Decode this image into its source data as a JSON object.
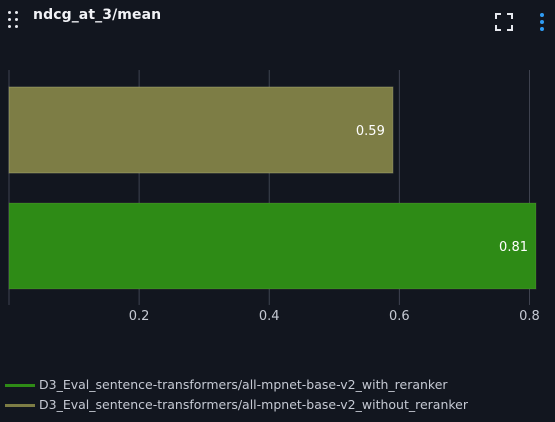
{
  "panel": {
    "title": "ndcg_at_3/mean",
    "icons": {
      "drag": "drag-handle-icon",
      "fullscreen": "fullscreen-icon",
      "menu": "more-vertical-icon"
    },
    "colors": {
      "background": "#12161f",
      "grid": "#3e4350",
      "text": "#c5c9d3",
      "menu_accent": "#2f9cf4"
    }
  },
  "chart_data": {
    "type": "bar",
    "orientation": "horizontal",
    "title": "ndcg_at_3/mean",
    "xlabel": "",
    "ylabel": "",
    "xlim": [
      0,
      0.81
    ],
    "xticks": [
      0.2,
      0.4,
      0.6,
      0.8
    ],
    "xtick_labels": [
      "0.2",
      "0.4",
      "0.6",
      "0.8"
    ],
    "grid": true,
    "legend_position": "bottom-left",
    "series": [
      {
        "name": "D3_Eval_sentence-transformers/all-mpnet-base-v2_without_reranker",
        "value": 0.59,
        "label": "0.59",
        "color": "#7d7d45"
      },
      {
        "name": "D3_Eval_sentence-transformers/all-mpnet-base-v2_with_reranker",
        "value": 0.81,
        "label": "0.81",
        "color": "#2e8b16"
      }
    ],
    "legend": [
      {
        "name": "D3_Eval_sentence-transformers/all-mpnet-base-v2_with_reranker",
        "color": "#2e8b16"
      },
      {
        "name": "D3_Eval_sentence-transformers/all-mpnet-base-v2_without_reranker",
        "color": "#7d7d45"
      }
    ]
  }
}
